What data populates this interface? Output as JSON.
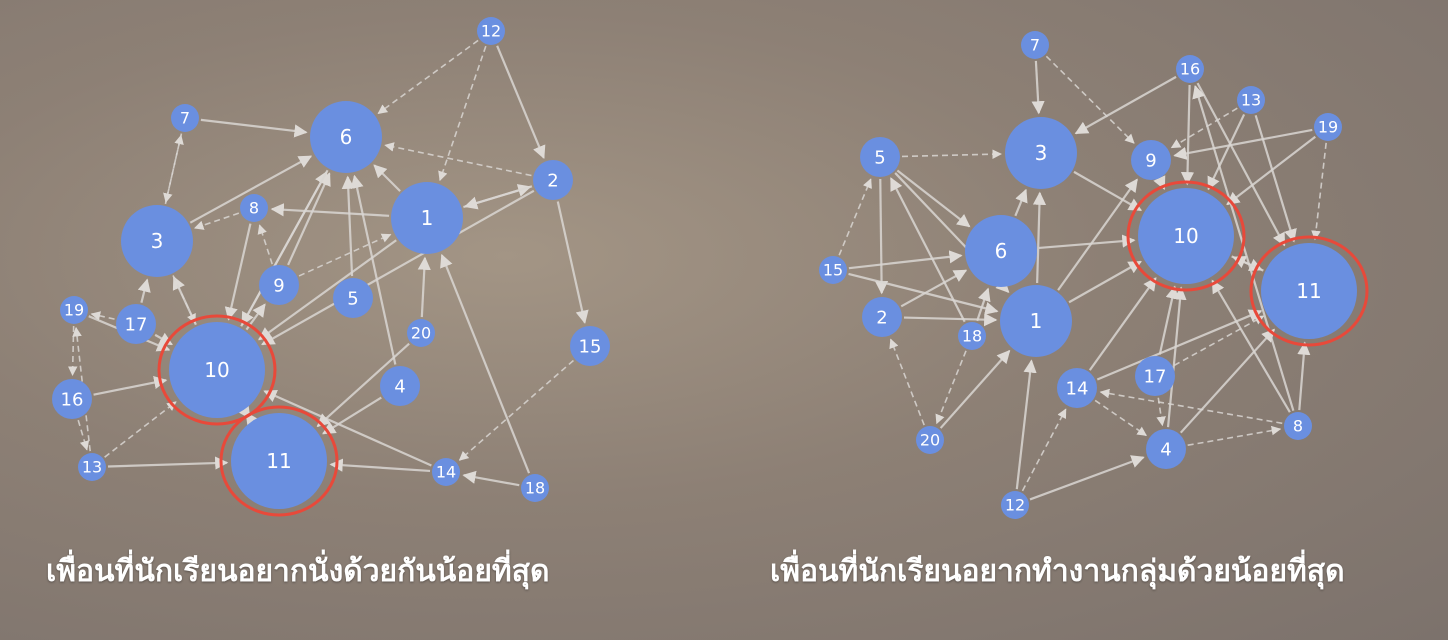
{
  "colors": {
    "node": "#6a8fe0",
    "node_text": "#ffffff",
    "edge": "#d9d6d2",
    "highlight": "#e8493a"
  },
  "networks": [
    {
      "id": "left",
      "caption": "เพื่อนที่นักเรียนอยากนั่งด้วยกันน้อยที่สุด",
      "highlighted": [
        "10",
        "11"
      ],
      "nodes": [
        {
          "id": "1",
          "size": "large"
        },
        {
          "id": "2",
          "size": "medium"
        },
        {
          "id": "3",
          "size": "large"
        },
        {
          "id": "4",
          "size": "medium"
        },
        {
          "id": "5",
          "size": "medium"
        },
        {
          "id": "6",
          "size": "large"
        },
        {
          "id": "7",
          "size": "small"
        },
        {
          "id": "8",
          "size": "small"
        },
        {
          "id": "9",
          "size": "medium"
        },
        {
          "id": "10",
          "size": "xlarge"
        },
        {
          "id": "11",
          "size": "xlarge"
        },
        {
          "id": "12",
          "size": "small"
        },
        {
          "id": "13",
          "size": "small"
        },
        {
          "id": "14",
          "size": "small"
        },
        {
          "id": "15",
          "size": "medium"
        },
        {
          "id": "16",
          "size": "medium"
        },
        {
          "id": "17",
          "size": "medium"
        },
        {
          "id": "18",
          "size": "small"
        },
        {
          "id": "19",
          "size": "small"
        },
        {
          "id": "20",
          "size": "small"
        }
      ],
      "edges": [
        [
          "7",
          "6",
          0
        ],
        [
          "12",
          "6",
          1
        ],
        [
          "12",
          "2",
          0
        ],
        [
          "12",
          "1",
          1
        ],
        [
          "1",
          "6",
          0
        ],
        [
          "1",
          "8",
          0
        ],
        [
          "1",
          "2",
          0
        ],
        [
          "2",
          "1",
          0
        ],
        [
          "8",
          "3",
          1
        ],
        [
          "3",
          "6",
          0
        ],
        [
          "3",
          "7",
          1
        ],
        [
          "7",
          "3",
          1
        ],
        [
          "9",
          "6",
          0
        ],
        [
          "9",
          "8",
          1
        ],
        [
          "10",
          "6",
          0
        ],
        [
          "10",
          "9",
          0
        ],
        [
          "10",
          "3",
          0
        ],
        [
          "17",
          "3",
          0
        ],
        [
          "19",
          "10",
          0
        ],
        [
          "16",
          "10",
          0
        ],
        [
          "13",
          "10",
          1
        ],
        [
          "13",
          "11",
          0
        ],
        [
          "11",
          "10",
          0
        ],
        [
          "14",
          "11",
          0
        ],
        [
          "14",
          "10",
          0
        ],
        [
          "18",
          "14",
          0
        ],
        [
          "18",
          "1",
          0
        ],
        [
          "15",
          "14",
          1
        ],
        [
          "2",
          "15",
          0
        ],
        [
          "4",
          "11",
          0
        ],
        [
          "4",
          "6",
          0
        ],
        [
          "20",
          "1",
          0
        ],
        [
          "20",
          "11",
          0
        ],
        [
          "5",
          "6",
          0
        ],
        [
          "17",
          "10",
          0
        ],
        [
          "16",
          "13",
          1
        ],
        [
          "19",
          "16",
          1
        ],
        [
          "10",
          "11",
          0
        ],
        [
          "3",
          "10",
          1
        ],
        [
          "2",
          "10",
          0
        ],
        [
          "1",
          "10",
          0
        ],
        [
          "8",
          "10",
          0
        ],
        [
          "6",
          "10",
          0
        ],
        [
          "9",
          "1",
          1
        ],
        [
          "2",
          "6",
          1
        ],
        [
          "17",
          "19",
          1
        ],
        [
          "13",
          "19",
          1
        ]
      ]
    },
    {
      "id": "right",
      "caption": "เพื่อนที่นักเรียนอยากทำงานกลุ่มด้วยน้อยที่สุด",
      "highlighted": [
        "10",
        "11"
      ],
      "nodes": [
        {
          "id": "1",
          "size": "large"
        },
        {
          "id": "2",
          "size": "medium"
        },
        {
          "id": "3",
          "size": "large"
        },
        {
          "id": "4",
          "size": "medium"
        },
        {
          "id": "5",
          "size": "medium"
        },
        {
          "id": "6",
          "size": "large"
        },
        {
          "id": "7",
          "size": "small"
        },
        {
          "id": "8",
          "size": "small"
        },
        {
          "id": "9",
          "size": "medium"
        },
        {
          "id": "10",
          "size": "xlarge"
        },
        {
          "id": "11",
          "size": "xlarge"
        },
        {
          "id": "12",
          "size": "small"
        },
        {
          "id": "13",
          "size": "small"
        },
        {
          "id": "14",
          "size": "medium"
        },
        {
          "id": "15",
          "size": "small"
        },
        {
          "id": "16",
          "size": "small"
        },
        {
          "id": "17",
          "size": "medium"
        },
        {
          "id": "18",
          "size": "small"
        },
        {
          "id": "19",
          "size": "small"
        },
        {
          "id": "20",
          "size": "small"
        }
      ],
      "edges": [
        [
          "7",
          "3",
          0
        ],
        [
          "7",
          "9",
          1
        ],
        [
          "16",
          "3",
          0
        ],
        [
          "16",
          "10",
          0
        ],
        [
          "13",
          "9",
          1
        ],
        [
          "13",
          "10",
          0
        ],
        [
          "19",
          "9",
          0
        ],
        [
          "19",
          "11",
          1
        ],
        [
          "5",
          "3",
          1
        ],
        [
          "5",
          "6",
          0
        ],
        [
          "5",
          "1",
          0
        ],
        [
          "5",
          "2",
          0
        ],
        [
          "15",
          "6",
          0
        ],
        [
          "15",
          "1",
          0
        ],
        [
          "15",
          "5",
          1
        ],
        [
          "2",
          "6",
          0
        ],
        [
          "2",
          "1",
          0
        ],
        [
          "18",
          "6",
          0
        ],
        [
          "18",
          "5",
          0
        ],
        [
          "20",
          "1",
          0
        ],
        [
          "20",
          "2",
          1
        ],
        [
          "12",
          "1",
          0
        ],
        [
          "12",
          "4",
          0
        ],
        [
          "12",
          "14",
          1
        ],
        [
          "14",
          "10",
          0
        ],
        [
          "14",
          "11",
          0
        ],
        [
          "14",
          "4",
          1
        ],
        [
          "17",
          "10",
          0
        ],
        [
          "17",
          "11",
          1
        ],
        [
          "4",
          "10",
          0
        ],
        [
          "4",
          "11",
          0
        ],
        [
          "8",
          "10",
          0
        ],
        [
          "8",
          "11",
          0
        ],
        [
          "8",
          "14",
          1
        ],
        [
          "6",
          "10",
          0
        ],
        [
          "6",
          "3",
          0
        ],
        [
          "1",
          "10",
          0
        ],
        [
          "1",
          "3",
          0
        ],
        [
          "1",
          "9",
          0
        ],
        [
          "3",
          "10",
          0
        ],
        [
          "9",
          "10",
          0
        ],
        [
          "10",
          "11",
          0
        ],
        [
          "11",
          "10",
          0
        ],
        [
          "16",
          "11",
          0
        ],
        [
          "13",
          "11",
          0
        ],
        [
          "19",
          "10",
          0
        ],
        [
          "17",
          "4",
          1
        ],
        [
          "8",
          "16",
          0
        ],
        [
          "4",
          "8",
          1
        ],
        [
          "18",
          "20",
          1
        ]
      ]
    }
  ]
}
